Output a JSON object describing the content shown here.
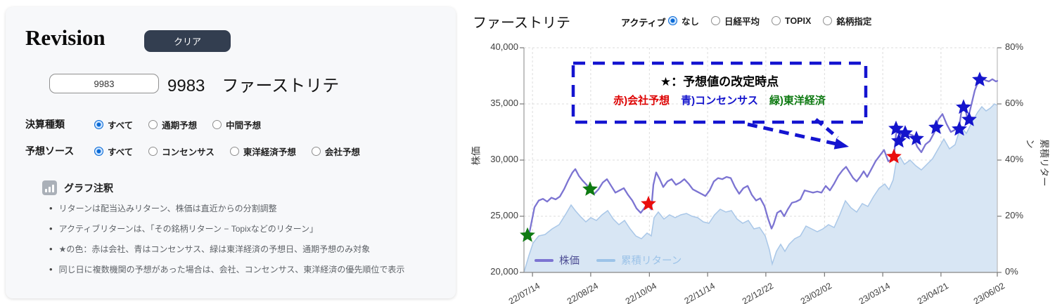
{
  "left_panel": {
    "title": "Revision",
    "clear_button": "クリア",
    "code_value": "9983",
    "stock_title": "9983　ファーストリテ",
    "filters": [
      {
        "label": "決算種類",
        "options": [
          {
            "label": "すべて",
            "selected": true
          },
          {
            "label": "通期予想",
            "selected": false
          },
          {
            "label": "中間予想",
            "selected": false
          }
        ]
      },
      {
        "label": "予想ソース",
        "options": [
          {
            "label": "すべて",
            "selected": true
          },
          {
            "label": "コンセンサス",
            "selected": false
          },
          {
            "label": "東洋経済予想",
            "selected": false
          },
          {
            "label": "会社予想",
            "selected": false
          }
        ]
      }
    ],
    "notes": {
      "header": "グラフ注釈",
      "items": [
        "リターンは配当込みリターン、株価は直近からの分割調整",
        "アクティブリターンは、「その銘柄リターン − Topixなどのリターン」",
        "★の色：赤は会社、青はコンセンサス、緑は東洋経済の予想日、通期予想のみ対象",
        "同じ日に複数機関の予想があった場合は、会社、コンセンサス、東洋経済の優先順位で表示"
      ]
    }
  },
  "chart_panel": {
    "title": "ファーストリテ",
    "active_label": "アクティブ",
    "active_options": [
      {
        "label": "なし",
        "selected": true
      },
      {
        "label": "日経平均",
        "selected": false
      },
      {
        "label": "TOPIX",
        "selected": false
      },
      {
        "label": "銘柄指定",
        "selected": false
      }
    ],
    "annotation_box": {
      "title": "★：予想値の改定時点",
      "entries": [
        {
          "text": "赤)会社予想",
          "color": "#dd0000"
        },
        {
          "text": "青)コンセンサス",
          "color": "#1515cd"
        },
        {
          "text": "緑)東洋経済",
          "color": "#0e7a12"
        }
      ],
      "border_color": "#1414d0"
    },
    "legend": [
      {
        "label": "株価",
        "color": "#7c74d2",
        "text_color": "#4e4e94"
      },
      {
        "label": "累積リターン",
        "color": "#9cc3e8",
        "text_color": "#9cc3e8"
      }
    ]
  },
  "chart_data": {
    "type": "line",
    "title": "ファーストリテ",
    "ylabel_left": "株価",
    "ylabel_right": "累積リターン",
    "ylim_left": [
      20000,
      40000
    ],
    "ylim_right": [
      0,
      80
    ],
    "yticks_left": [
      "40,000",
      "35,000",
      "30,000",
      "25,000",
      "20,000"
    ],
    "yticks_right": [
      "80%",
      "60%",
      "40%",
      "20%",
      "0%"
    ],
    "x_ticks": [
      "22/07/14",
      "22/08/24",
      "22/10/04",
      "22/11/14",
      "22/12/22",
      "23/02/02",
      "23/03/14",
      "23/04/21",
      "23/06/02"
    ],
    "x_tick_pos": [
      0.018,
      0.141,
      0.265,
      0.388,
      0.511,
      0.635,
      0.758,
      0.881,
      1.0
    ],
    "t_domain": [
      0,
      673
    ],
    "grid": true,
    "series": [
      {
        "name": "株価",
        "axis": "left",
        "color": "#7c74d2",
        "points": [
          [
            0,
            23000
          ],
          [
            7,
            23300
          ],
          [
            15,
            25800
          ],
          [
            21,
            26400
          ],
          [
            27,
            26550
          ],
          [
            33,
            26300
          ],
          [
            39,
            26650
          ],
          [
            45,
            26500
          ],
          [
            51,
            26750
          ],
          [
            57,
            27400
          ],
          [
            63,
            28200
          ],
          [
            69,
            28900
          ],
          [
            73,
            29200
          ],
          [
            78,
            28600
          ],
          [
            83,
            28200
          ],
          [
            89,
            27800
          ],
          [
            94,
            27400
          ],
          [
            100,
            27000
          ],
          [
            106,
            27400
          ],
          [
            112,
            28000
          ],
          [
            118,
            28300
          ],
          [
            124,
            27700
          ],
          [
            130,
            27100
          ],
          [
            136,
            27300
          ],
          [
            142,
            27500
          ],
          [
            148,
            26900
          ],
          [
            154,
            26400
          ],
          [
            160,
            25700
          ],
          [
            166,
            25300
          ],
          [
            172,
            25800
          ],
          [
            177,
            26100
          ],
          [
            181,
            25600
          ],
          [
            184,
            27800
          ],
          [
            188,
            28900
          ],
          [
            193,
            28300
          ],
          [
            198,
            27600
          ],
          [
            204,
            28100
          ],
          [
            210,
            28300
          ],
          [
            216,
            27800
          ],
          [
            222,
            28000
          ],
          [
            228,
            28300
          ],
          [
            234,
            27900
          ],
          [
            240,
            27400
          ],
          [
            246,
            27200
          ],
          [
            252,
            27000
          ],
          [
            258,
            26800
          ],
          [
            264,
            27300
          ],
          [
            270,
            28100
          ],
          [
            276,
            28400
          ],
          [
            282,
            28300
          ],
          [
            288,
            28500
          ],
          [
            294,
            28400
          ],
          [
            300,
            27600
          ],
          [
            306,
            27000
          ],
          [
            312,
            27500
          ],
          [
            318,
            27700
          ],
          [
            324,
            26900
          ],
          [
            330,
            26400
          ],
          [
            336,
            26600
          ],
          [
            342,
            25900
          ],
          [
            347,
            24800
          ],
          [
            352,
            23900
          ],
          [
            355,
            24300
          ],
          [
            360,
            25300
          ],
          [
            365,
            25500
          ],
          [
            370,
            25000
          ],
          [
            375,
            25600
          ],
          [
            381,
            26200
          ],
          [
            387,
            26300
          ],
          [
            393,
            26500
          ],
          [
            399,
            27300
          ],
          [
            405,
            27200
          ],
          [
            411,
            27100
          ],
          [
            417,
            27200
          ],
          [
            423,
            27100
          ],
          [
            429,
            27700
          ],
          [
            435,
            27300
          ],
          [
            441,
            27900
          ],
          [
            447,
            28600
          ],
          [
            453,
            29100
          ],
          [
            458,
            29400
          ],
          [
            463,
            28900
          ],
          [
            468,
            28400
          ],
          [
            473,
            28100
          ],
          [
            478,
            28500
          ],
          [
            483,
            29000
          ],
          [
            488,
            28500
          ],
          [
            494,
            29200
          ],
          [
            500,
            29900
          ],
          [
            506,
            30400
          ],
          [
            512,
            30900
          ],
          [
            518,
            29900
          ],
          [
            522,
            30000
          ],
          [
            526,
            30300
          ],
          [
            529,
            32300
          ],
          [
            533,
            32900
          ],
          [
            538,
            31800
          ],
          [
            543,
            32400
          ],
          [
            548,
            32300
          ],
          [
            553,
            32200
          ],
          [
            559,
            31200
          ],
          [
            565,
            30700
          ],
          [
            571,
            31400
          ],
          [
            577,
            31700
          ],
          [
            583,
            32400
          ],
          [
            589,
            33600
          ],
          [
            595,
            34100
          ],
          [
            601,
            33200
          ],
          [
            607,
            32500
          ],
          [
            613,
            32700
          ],
          [
            619,
            33000
          ],
          [
            623,
            34800
          ],
          [
            627,
            34600
          ],
          [
            631,
            33600
          ],
          [
            636,
            34900
          ],
          [
            641,
            36200
          ],
          [
            646,
            37000
          ],
          [
            651,
            37400
          ],
          [
            656,
            37100
          ],
          [
            661,
            37000
          ],
          [
            666,
            37200
          ],
          [
            671,
            37000
          ],
          [
            673,
            37050
          ]
        ]
      },
      {
        "name": "累積リターン",
        "axis": "right",
        "color": "#a9c7e8",
        "fill": "#d8e6f4",
        "points": [
          [
            0,
            0
          ],
          [
            7,
            6
          ],
          [
            13,
            10.5
          ],
          [
            21,
            13
          ],
          [
            30,
            13.5
          ],
          [
            40,
            15.5
          ],
          [
            50,
            17
          ],
          [
            60,
            21
          ],
          [
            67,
            24
          ],
          [
            73,
            22
          ],
          [
            80,
            20
          ],
          [
            88,
            18
          ],
          [
            95,
            19.5
          ],
          [
            103,
            18.5
          ],
          [
            111,
            20.5
          ],
          [
            119,
            22
          ],
          [
            127,
            19
          ],
          [
            135,
            17
          ],
          [
            143,
            18.5
          ],
          [
            151,
            15.5
          ],
          [
            159,
            13
          ],
          [
            167,
            12
          ],
          [
            175,
            14
          ],
          [
            181,
            13
          ],
          [
            185,
            19.5
          ],
          [
            191,
            21.5
          ],
          [
            199,
            19
          ],
          [
            207,
            20.5
          ],
          [
            215,
            19.5
          ],
          [
            223,
            20.5
          ],
          [
            231,
            21
          ],
          [
            239,
            20
          ],
          [
            247,
            19.5
          ],
          [
            255,
            18
          ],
          [
            263,
            17.5
          ],
          [
            271,
            20.5
          ],
          [
            279,
            22.5
          ],
          [
            287,
            21.5
          ],
          [
            295,
            22
          ],
          [
            303,
            19
          ],
          [
            311,
            17.5
          ],
          [
            319,
            18.5
          ],
          [
            327,
            15.5
          ],
          [
            335,
            16
          ],
          [
            343,
            13
          ],
          [
            349,
            8
          ],
          [
            353,
            3
          ],
          [
            359,
            7.5
          ],
          [
            365,
            10
          ],
          [
            371,
            7.5
          ],
          [
            377,
            10
          ],
          [
            385,
            12
          ],
          [
            393,
            13
          ],
          [
            401,
            16.5
          ],
          [
            409,
            15.5
          ],
          [
            417,
            14.5
          ],
          [
            425,
            15.5
          ],
          [
            433,
            17
          ],
          [
            441,
            16
          ],
          [
            449,
            20.5
          ],
          [
            457,
            25.5
          ],
          [
            465,
            23
          ],
          [
            473,
            21.5
          ],
          [
            481,
            24.5
          ],
          [
            489,
            23.5
          ],
          [
            497,
            27
          ],
          [
            505,
            30
          ],
          [
            513,
            31.5
          ],
          [
            519,
            29.5
          ],
          [
            525,
            33
          ],
          [
            529,
            39
          ],
          [
            535,
            41
          ],
          [
            541,
            38.5
          ],
          [
            549,
            40
          ],
          [
            557,
            38
          ],
          [
            565,
            36.5
          ],
          [
            573,
            38.5
          ],
          [
            581,
            40.5
          ],
          [
            589,
            44
          ],
          [
            597,
            47.5
          ],
          [
            605,
            44
          ],
          [
            613,
            45.5
          ],
          [
            621,
            52
          ],
          [
            629,
            49.5
          ],
          [
            637,
            53.5
          ],
          [
            645,
            57
          ],
          [
            651,
            59
          ],
          [
            657,
            57.5
          ],
          [
            663,
            58.5
          ],
          [
            669,
            60
          ],
          [
            673,
            59.5
          ]
        ]
      }
    ],
    "stars": {
      "green": {
        "meaning": "東洋経済の予想日",
        "color": "#0e7a12",
        "points": [
          [
            5,
            23300
          ],
          [
            94,
            27400
          ]
        ]
      },
      "red": {
        "meaning": "会社予想の改定",
        "color": "#ea0d0d",
        "points": [
          [
            177,
            26100
          ],
          [
            526,
            30300
          ]
        ]
      },
      "blue": {
        "meaning": "コンセンサスの改定",
        "color": "#1414cc",
        "points": [
          [
            529,
            32800
          ],
          [
            533,
            31700
          ],
          [
            542,
            32400
          ],
          [
            558,
            31900
          ],
          [
            586,
            32900
          ],
          [
            619,
            32750
          ],
          [
            625,
            34700
          ],
          [
            633,
            33600
          ],
          [
            648,
            37150
          ]
        ]
      }
    }
  }
}
